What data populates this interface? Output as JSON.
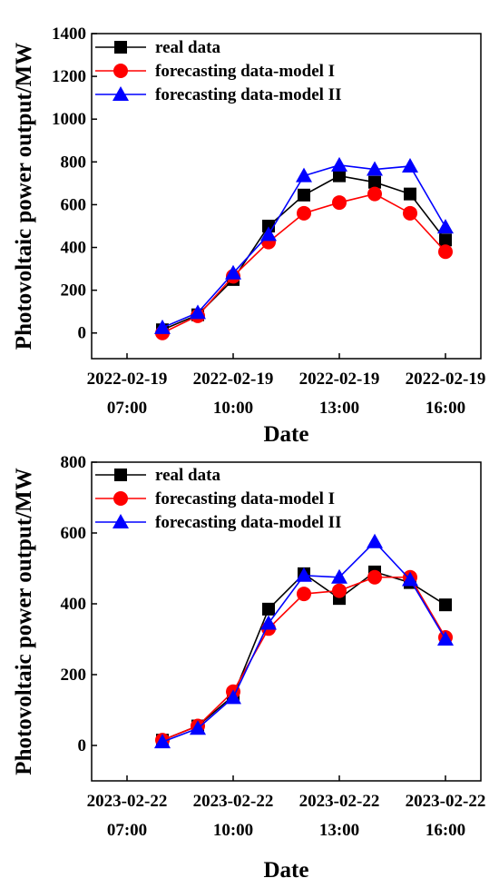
{
  "chart_data": [
    {
      "type": "line",
      "xlabel": "Date",
      "ylabel": "Photovoltaic power output/MW",
      "ylim": [
        -120,
        1400
      ],
      "yticks": [
        0,
        200,
        400,
        600,
        800,
        1000,
        1200,
        1400
      ],
      "xlim": [
        6,
        17
      ],
      "xticks": [
        {
          "x": 7,
          "line1": "2022-02-19",
          "line2": "07:00"
        },
        {
          "x": 10,
          "line1": "2022-02-19",
          "line2": "10:00"
        },
        {
          "x": 13,
          "line1": "2022-02-19",
          "line2": "13:00"
        },
        {
          "x": 16,
          "line1": "2022-02-19",
          "line2": "16:00"
        }
      ],
      "legend_position": "top-left",
      "x": [
        8,
        9,
        10,
        11,
        12,
        13,
        14,
        15,
        16
      ],
      "series": [
        {
          "name": "real data",
          "color": "#000000",
          "marker": "square",
          "values": [
            15,
            85,
            250,
            500,
            645,
            735,
            705,
            650,
            435
          ]
        },
        {
          "name": "forecasting data-model I",
          "color": "#ff0000",
          "marker": "circle",
          "values": [
            0,
            80,
            265,
            425,
            560,
            610,
            650,
            560,
            380
          ]
        },
        {
          "name": "forecasting data-model II",
          "color": "#0000ff",
          "marker": "triangle",
          "values": [
            25,
            95,
            280,
            460,
            735,
            785,
            765,
            780,
            495
          ]
        }
      ]
    },
    {
      "type": "line",
      "xlabel": "Date",
      "ylabel": "Photovoltaic power output/MW",
      "ylim": [
        -100,
        800
      ],
      "yticks": [
        0,
        200,
        400,
        600,
        800
      ],
      "xlim": [
        6,
        17
      ],
      "xticks": [
        {
          "x": 7,
          "line1": "2023-02-22",
          "line2": "07:00"
        },
        {
          "x": 10,
          "line1": "2023-02-22",
          "line2": "10:00"
        },
        {
          "x": 13,
          "line1": "2023-02-22",
          "line2": "13:00"
        },
        {
          "x": 16,
          "line1": "2023-02-22",
          "line2": "16:00"
        }
      ],
      "legend_position": "top-left",
      "x": [
        8,
        9,
        10,
        11,
        12,
        13,
        14,
        15,
        16
      ],
      "series": [
        {
          "name": "real data",
          "color": "#000000",
          "marker": "square",
          "values": [
            15,
            55,
            140,
            385,
            485,
            415,
            490,
            460,
            397
          ]
        },
        {
          "name": "forecasting data-model I",
          "color": "#ff0000",
          "marker": "circle",
          "values": [
            15,
            55,
            152,
            330,
            428,
            437,
            475,
            475,
            305
          ]
        },
        {
          "name": "forecasting data-model II",
          "color": "#0000ff",
          "marker": "triangle",
          "values": [
            10,
            48,
            135,
            345,
            480,
            475,
            575,
            468,
            300
          ]
        }
      ]
    }
  ]
}
